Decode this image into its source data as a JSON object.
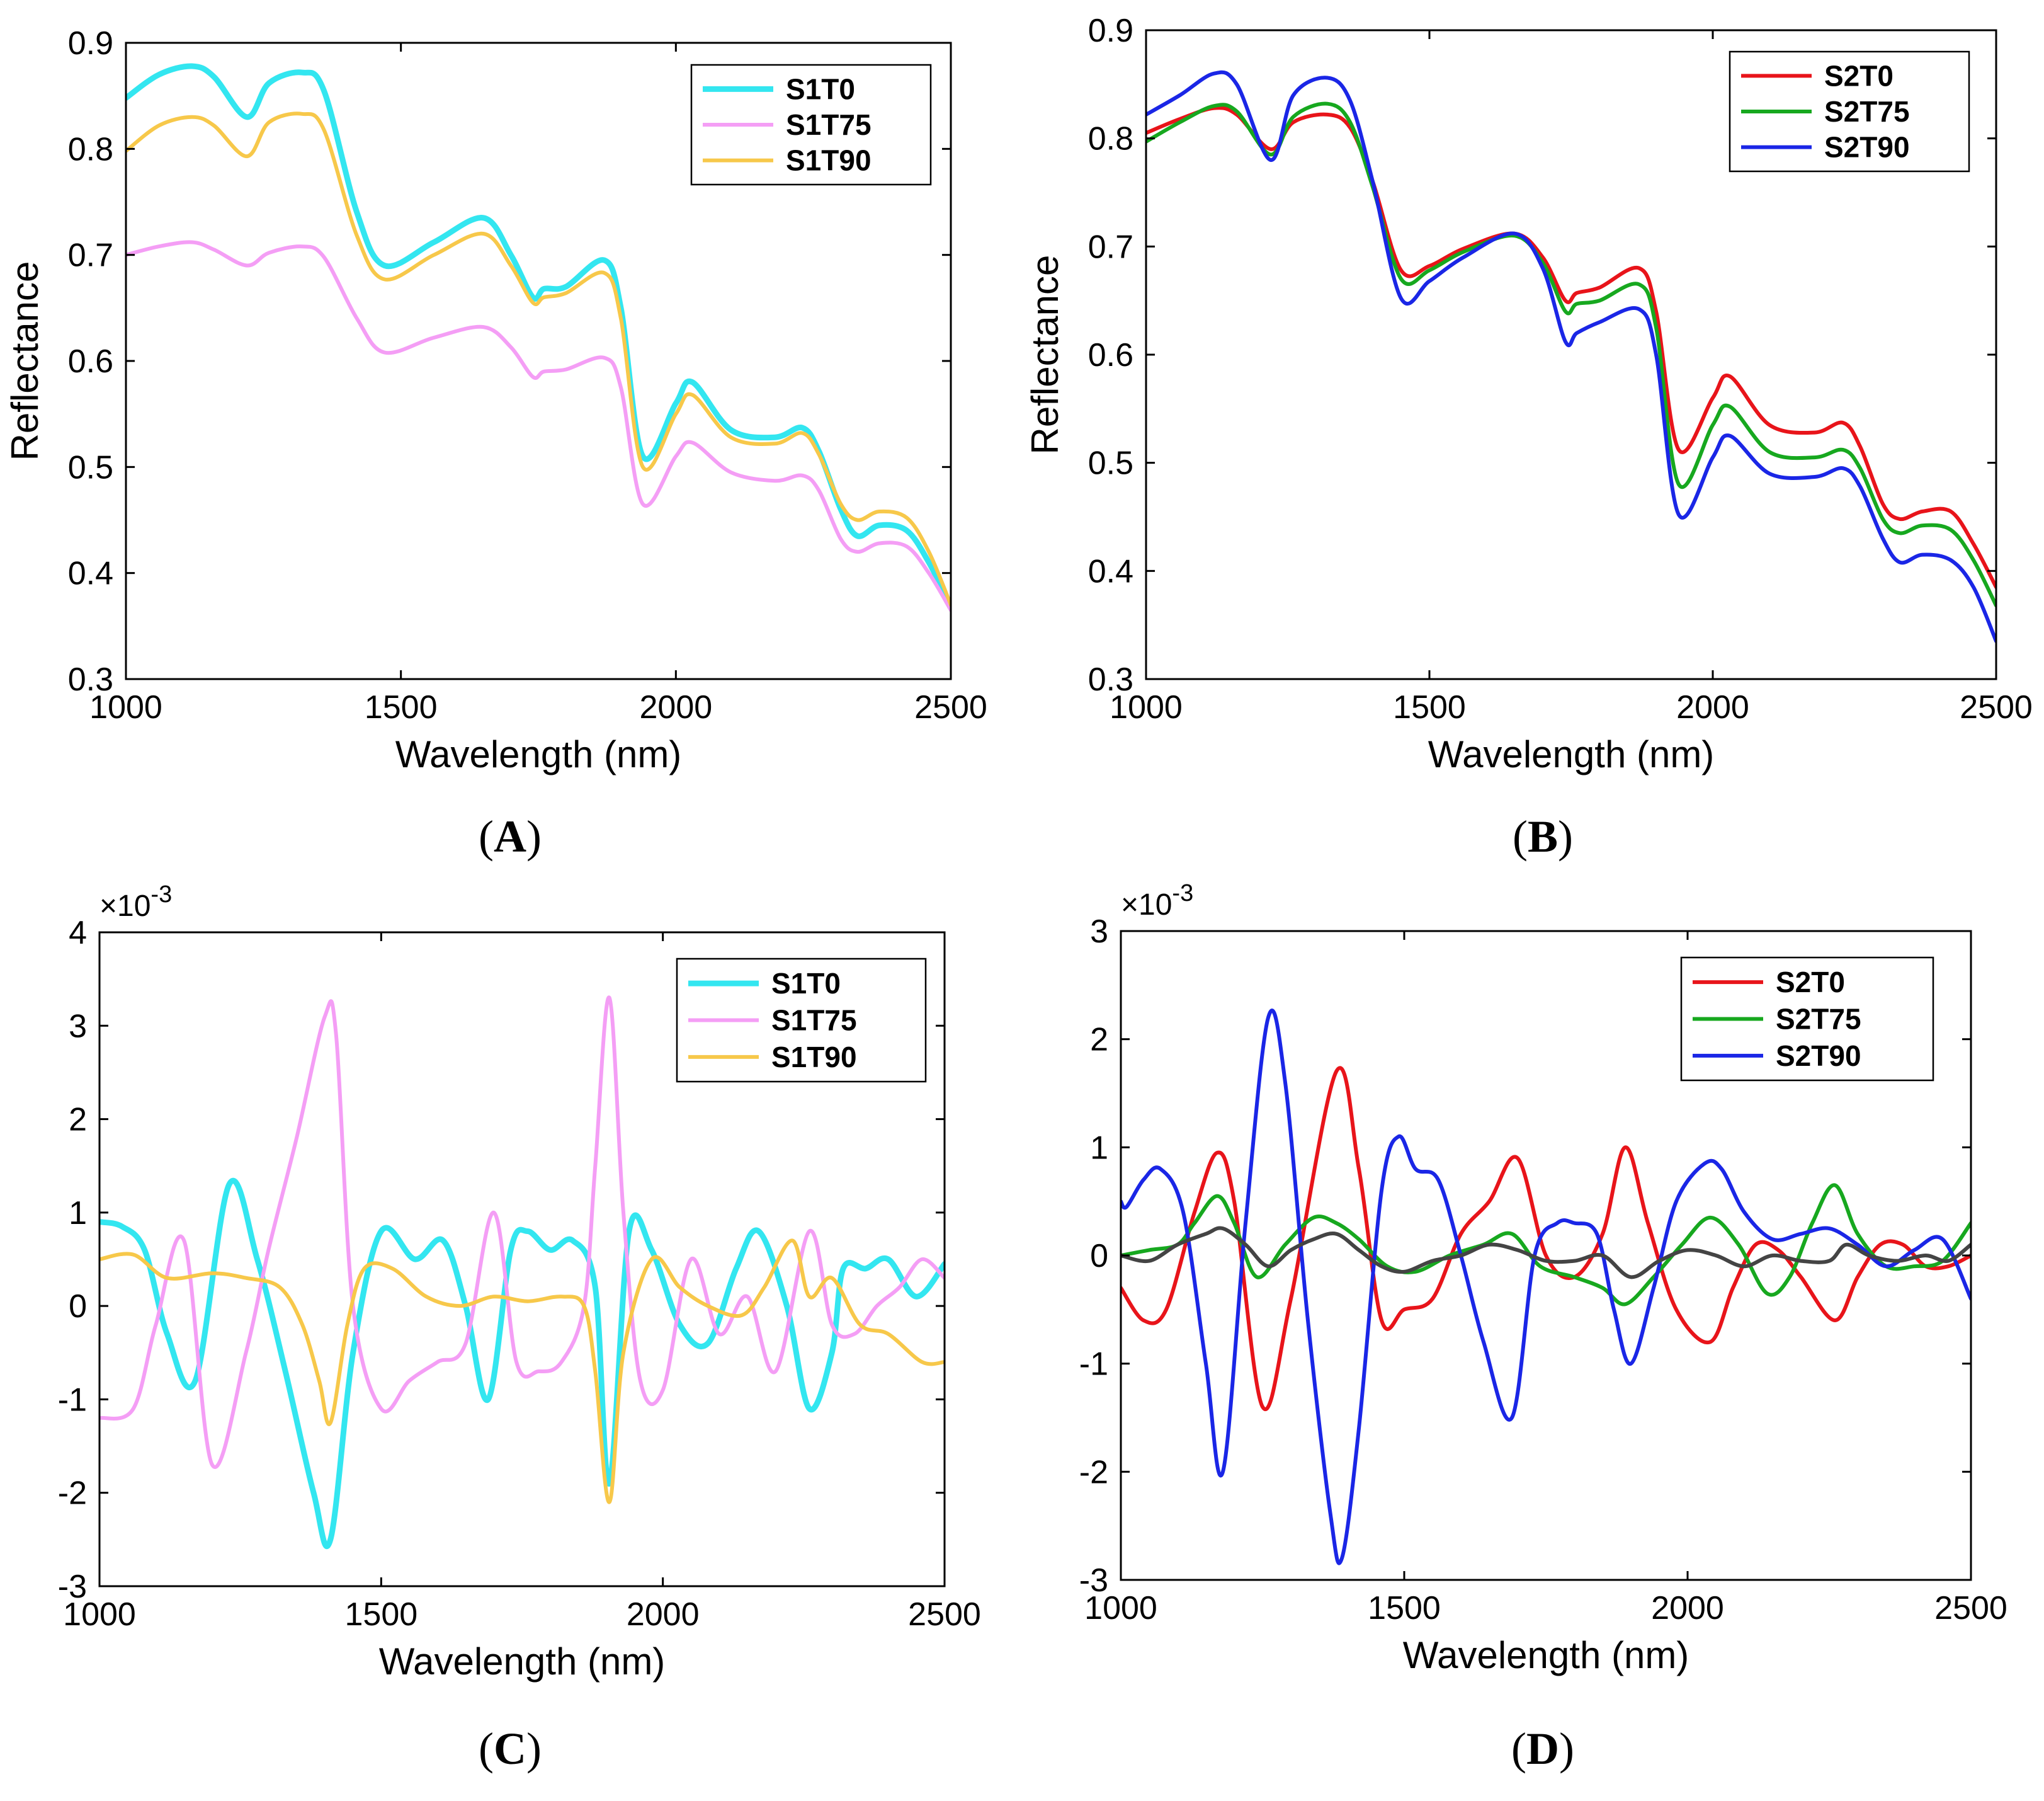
{
  "figure": {
    "background": "#ffffff"
  },
  "chart_data": [
    {
      "panel_label": "A",
      "type": "line",
      "xlabel": "Wavelength (nm)",
      "ylabel": "Reflectance",
      "xlim": [
        1000,
        2500
      ],
      "ylim": [
        0.3,
        0.9
      ],
      "xticks": [
        "1000",
        "1500",
        "2000",
        "2500"
      ],
      "yticks": [
        "0.3",
        "0.4",
        "0.5",
        "0.6",
        "0.7",
        "0.8",
        "0.9"
      ],
      "legend_position": "top-right",
      "series": [
        {
          "name": "S1T0",
          "color": "#33e6f0",
          "x": [
            1000,
            1060,
            1120,
            1160,
            1220,
            1260,
            1320,
            1360,
            1420,
            1470,
            1560,
            1650,
            1700,
            1740,
            1760,
            1800,
            1870,
            1900,
            1940,
            2000,
            2030,
            2100,
            2180,
            2230,
            2260,
            2300,
            2330,
            2370,
            2420,
            2460,
            2500
          ],
          "y": [
            0.848,
            0.87,
            0.878,
            0.868,
            0.83,
            0.862,
            0.872,
            0.855,
            0.74,
            0.69,
            0.712,
            0.735,
            0.7,
            0.66,
            0.668,
            0.67,
            0.695,
            0.65,
            0.51,
            0.56,
            0.58,
            0.535,
            0.528,
            0.537,
            0.515,
            0.46,
            0.435,
            0.445,
            0.44,
            0.41,
            0.368
          ]
        },
        {
          "name": "S1T75",
          "color": "#f49ef5",
          "x": [
            1000,
            1060,
            1120,
            1160,
            1220,
            1260,
            1320,
            1360,
            1420,
            1470,
            1560,
            1650,
            1700,
            1740,
            1760,
            1800,
            1870,
            1900,
            1940,
            2000,
            2030,
            2100,
            2180,
            2230,
            2260,
            2300,
            2330,
            2370,
            2420,
            2460,
            2500
          ],
          "y": [
            0.7,
            0.708,
            0.712,
            0.705,
            0.69,
            0.702,
            0.708,
            0.698,
            0.64,
            0.608,
            0.622,
            0.632,
            0.613,
            0.585,
            0.59,
            0.592,
            0.603,
            0.575,
            0.465,
            0.51,
            0.523,
            0.495,
            0.487,
            0.492,
            0.478,
            0.432,
            0.42,
            0.428,
            0.425,
            0.4,
            0.365
          ]
        },
        {
          "name": "S1T90",
          "color": "#f7c84a",
          "x": [
            1000,
            1060,
            1120,
            1160,
            1220,
            1260,
            1320,
            1360,
            1420,
            1470,
            1560,
            1650,
            1700,
            1740,
            1760,
            1800,
            1870,
            1900,
            1940,
            2000,
            2030,
            2100,
            2180,
            2230,
            2260,
            2300,
            2330,
            2370,
            2420,
            2460,
            2500
          ],
          "y": [
            0.798,
            0.822,
            0.83,
            0.822,
            0.793,
            0.825,
            0.833,
            0.818,
            0.718,
            0.677,
            0.7,
            0.72,
            0.69,
            0.655,
            0.66,
            0.664,
            0.683,
            0.64,
            0.5,
            0.55,
            0.568,
            0.528,
            0.522,
            0.532,
            0.512,
            0.465,
            0.45,
            0.458,
            0.452,
            0.42,
            0.37
          ]
        }
      ]
    },
    {
      "panel_label": "B",
      "type": "line",
      "xlabel": "Wavelength (nm)",
      "ylabel": "Reflectance",
      "xlim": [
        1000,
        2500
      ],
      "ylim": [
        0.3,
        0.9
      ],
      "xticks": [
        "1000",
        "1500",
        "2000",
        "2500"
      ],
      "yticks": [
        "0.3",
        "0.4",
        "0.5",
        "0.6",
        "0.7",
        "0.8",
        "0.9"
      ],
      "legend_position": "top-right",
      "series": [
        {
          "name": "S2T0",
          "color": "#e8141a",
          "x": [
            1000,
            1060,
            1120,
            1160,
            1220,
            1260,
            1320,
            1360,
            1400,
            1450,
            1500,
            1560,
            1650,
            1700,
            1740,
            1760,
            1800,
            1870,
            1900,
            1940,
            2000,
            2030,
            2100,
            2180,
            2230,
            2260,
            2300,
            2330,
            2370,
            2420,
            2460,
            2500
          ],
          "y": [
            0.805,
            0.818,
            0.828,
            0.822,
            0.79,
            0.815,
            0.822,
            0.81,
            0.76,
            0.678,
            0.682,
            0.698,
            0.712,
            0.69,
            0.65,
            0.657,
            0.662,
            0.68,
            0.64,
            0.512,
            0.56,
            0.58,
            0.535,
            0.528,
            0.537,
            0.515,
            0.462,
            0.448,
            0.455,
            0.455,
            0.425,
            0.385
          ]
        },
        {
          "name": "S2T75",
          "color": "#17a81f",
          "x": [
            1000,
            1060,
            1120,
            1160,
            1220,
            1260,
            1320,
            1360,
            1400,
            1450,
            1500,
            1560,
            1650,
            1700,
            1740,
            1760,
            1800,
            1870,
            1900,
            1940,
            2000,
            2030,
            2100,
            2180,
            2230,
            2260,
            2300,
            2330,
            2370,
            2420,
            2460,
            2500
          ],
          "y": [
            0.797,
            0.815,
            0.83,
            0.825,
            0.785,
            0.82,
            0.832,
            0.815,
            0.755,
            0.67,
            0.678,
            0.695,
            0.71,
            0.685,
            0.64,
            0.647,
            0.65,
            0.665,
            0.625,
            0.48,
            0.535,
            0.552,
            0.51,
            0.505,
            0.512,
            0.495,
            0.448,
            0.435,
            0.442,
            0.438,
            0.41,
            0.368
          ]
        },
        {
          "name": "S2T90",
          "color": "#1a26e6",
          "x": [
            1000,
            1060,
            1120,
            1160,
            1220,
            1260,
            1320,
            1360,
            1400,
            1450,
            1500,
            1560,
            1650,
            1700,
            1740,
            1760,
            1800,
            1870,
            1900,
            1940,
            2000,
            2030,
            2100,
            2180,
            2230,
            2260,
            2300,
            2330,
            2370,
            2420,
            2460,
            2500
          ],
          "y": [
            0.822,
            0.84,
            0.86,
            0.85,
            0.78,
            0.84,
            0.856,
            0.835,
            0.76,
            0.652,
            0.668,
            0.69,
            0.712,
            0.68,
            0.612,
            0.62,
            0.63,
            0.642,
            0.6,
            0.452,
            0.505,
            0.525,
            0.49,
            0.487,
            0.495,
            0.478,
            0.43,
            0.408,
            0.415,
            0.41,
            0.385,
            0.335
          ]
        }
      ]
    },
    {
      "panel_label": "C",
      "type": "line",
      "xlabel": "Wavelength (nm)",
      "ylabel": "",
      "exponent": "×10",
      "exponent_power": "-3",
      "xlim": [
        1000,
        2500
      ],
      "ylim": [
        -3,
        4
      ],
      "xticks": [
        "1000",
        "1500",
        "2000",
        "2500"
      ],
      "yticks": [
        "-3",
        "-2",
        "-1",
        "0",
        "1",
        "2",
        "3",
        "4"
      ],
      "legend_position": "top-right",
      "series": [
        {
          "name": "S1T0",
          "color": "#33e6f0",
          "x": [
            1000,
            1040,
            1080,
            1120,
            1170,
            1230,
            1280,
            1330,
            1380,
            1410,
            1450,
            1500,
            1560,
            1610,
            1650,
            1690,
            1730,
            1760,
            1800,
            1840,
            1880,
            1905,
            1940,
            1980,
            2030,
            2080,
            2130,
            2170,
            2220,
            2260,
            2300,
            2320,
            2360,
            2400,
            2450,
            2500
          ],
          "y": [
            0.9,
            0.85,
            0.6,
            -0.3,
            -0.8,
            1.3,
            0.5,
            -0.7,
            -2.0,
            -2.5,
            -0.5,
            0.8,
            0.5,
            0.7,
            0.0,
            -1.0,
            0.6,
            0.8,
            0.6,
            0.7,
            0.2,
            -1.9,
            0.8,
            0.6,
            -0.2,
            -0.4,
            0.4,
            0.8,
            0.0,
            -1.1,
            -0.5,
            0.4,
            0.4,
            0.5,
            0.1,
            0.45
          ]
        },
        {
          "name": "S1T75",
          "color": "#f49ef5",
          "x": [
            1000,
            1060,
            1100,
            1150,
            1200,
            1260,
            1300,
            1350,
            1400,
            1420,
            1450,
            1500,
            1550,
            1600,
            1650,
            1700,
            1740,
            1780,
            1820,
            1860,
            1880,
            1905,
            1930,
            1960,
            2000,
            2050,
            2100,
            2150,
            2200,
            2260,
            2300,
            2340,
            2380,
            2420,
            2460,
            2500
          ],
          "y": [
            -1.2,
            -1.1,
            -0.2,
            0.7,
            -1.7,
            -0.5,
            0.6,
            1.8,
            3.1,
            2.9,
            0.0,
            -1.1,
            -0.8,
            -0.6,
            -0.4,
            1.0,
            -0.6,
            -0.7,
            -0.6,
            0.0,
            1.5,
            3.3,
            1.0,
            -0.8,
            -0.9,
            0.5,
            -0.3,
            0.1,
            -0.7,
            0.8,
            -0.2,
            -0.3,
            0.0,
            0.2,
            0.5,
            0.3
          ]
        },
        {
          "name": "S1T90",
          "color": "#f7c84a",
          "x": [
            1000,
            1060,
            1120,
            1200,
            1260,
            1320,
            1360,
            1390,
            1410,
            1440,
            1470,
            1520,
            1580,
            1640,
            1700,
            1760,
            1820,
            1860,
            1880,
            1905,
            1930,
            1980,
            2030,
            2080,
            2140,
            2180,
            2230,
            2260,
            2300,
            2350,
            2400,
            2460,
            2500
          ],
          "y": [
            0.5,
            0.55,
            0.3,
            0.35,
            0.3,
            0.2,
            -0.2,
            -0.8,
            -1.25,
            -0.2,
            0.4,
            0.4,
            0.1,
            0.0,
            0.1,
            0.05,
            0.1,
            0.0,
            -0.7,
            -2.1,
            -0.5,
            0.5,
            0.2,
            0.0,
            -0.1,
            0.2,
            0.7,
            0.1,
            0.3,
            -0.2,
            -0.3,
            -0.6,
            -0.6
          ]
        }
      ]
    },
    {
      "panel_label": "D",
      "type": "line",
      "xlabel": "Wavelength (nm)",
      "ylabel": "",
      "exponent": "×10",
      "exponent_power": "-3",
      "xlim": [
        1000,
        2500
      ],
      "ylim": [
        -3,
        3
      ],
      "xticks": [
        "1000",
        "1500",
        "2000",
        "2500"
      ],
      "yticks": [
        "-3",
        "-2",
        "-1",
        "0",
        "1",
        "2",
        "3"
      ],
      "legend_position": "top-right",
      "series": [
        {
          "name": "S2T0",
          "color": "#e8141a",
          "x": [
            1000,
            1040,
            1080,
            1130,
            1170,
            1200,
            1250,
            1300,
            1380,
            1420,
            1460,
            1500,
            1550,
            1600,
            1650,
            1700,
            1750,
            1800,
            1850,
            1890,
            1930,
            1980,
            2040,
            2080,
            2120,
            2160,
            2200,
            2260,
            2300,
            2340,
            2380,
            2420,
            2460,
            2500
          ],
          "y": [
            -0.3,
            -0.6,
            -0.5,
            0.4,
            0.95,
            0.5,
            -1.4,
            -0.4,
            1.7,
            0.8,
            -0.6,
            -0.5,
            -0.4,
            0.2,
            0.5,
            0.9,
            0.0,
            -0.2,
            0.2,
            1.0,
            0.3,
            -0.5,
            -0.8,
            -0.3,
            0.1,
            0.05,
            -0.2,
            -0.6,
            -0.2,
            0.1,
            0.1,
            -0.1,
            -0.1,
            0.0
          ]
        },
        {
          "name": "S2T75",
          "color": "#17a81f",
          "x": [
            1000,
            1050,
            1100,
            1130,
            1170,
            1200,
            1240,
            1290,
            1340,
            1380,
            1420,
            1470,
            1520,
            1580,
            1640,
            1690,
            1740,
            1800,
            1850,
            1890,
            1940,
            1990,
            2040,
            2090,
            2140,
            2180,
            2220,
            2260,
            2300,
            2350,
            2400,
            2450,
            2500
          ],
          "y": [
            0.0,
            0.05,
            0.1,
            0.3,
            0.55,
            0.3,
            -0.2,
            0.1,
            0.35,
            0.3,
            0.15,
            -0.1,
            -0.15,
            0.0,
            0.1,
            0.2,
            -0.1,
            -0.2,
            -0.3,
            -0.45,
            -0.2,
            0.1,
            0.35,
            0.1,
            -0.35,
            -0.2,
            0.3,
            0.65,
            0.2,
            -0.1,
            -0.1,
            -0.05,
            0.3
          ]
        },
        {
          "name": "S2T90",
          "color": "#1a26e6",
          "x": [
            1000,
            1010,
            1040,
            1070,
            1110,
            1150,
            1180,
            1220,
            1260,
            1290,
            1330,
            1370,
            1390,
            1420,
            1460,
            1490,
            1520,
            1560,
            1600,
            1640,
            1690,
            1730,
            1770,
            1800,
            1840,
            1870,
            1900,
            1940,
            1980,
            2030,
            2060,
            2100,
            2150,
            2200,
            2250,
            2300,
            2350,
            2400,
            2450,
            2500
          ],
          "y": [
            0.5,
            0.45,
            0.7,
            0.8,
            0.4,
            -1.0,
            -2.0,
            0.3,
            2.2,
            1.6,
            -0.6,
            -2.4,
            -2.8,
            -1.6,
            0.6,
            1.1,
            0.8,
            0.7,
            0.0,
            -0.8,
            -1.5,
            0.0,
            0.3,
            0.3,
            0.2,
            -0.5,
            -1.0,
            -0.3,
            0.5,
            0.85,
            0.8,
            0.4,
            0.15,
            0.2,
            0.25,
            0.1,
            -0.1,
            0.05,
            0.15,
            -0.4
          ]
        },
        {
          "name": "",
          "color": "#444444",
          "x": [
            1000,
            1050,
            1100,
            1150,
            1180,
            1220,
            1260,
            1300,
            1340,
            1380,
            1420,
            1460,
            1500,
            1550,
            1600,
            1650,
            1700,
            1750,
            1800,
            1850,
            1900,
            1950,
            2000,
            2050,
            2100,
            2150,
            2200,
            2250,
            2280,
            2320,
            2370,
            2420,
            2460,
            2500
          ],
          "y": [
            0.0,
            -0.05,
            0.1,
            0.2,
            0.25,
            0.1,
            -0.1,
            0.05,
            0.15,
            0.2,
            0.05,
            -0.1,
            -0.15,
            -0.05,
            0.0,
            0.1,
            0.05,
            -0.05,
            -0.05,
            0.0,
            -0.2,
            -0.05,
            0.05,
            0.0,
            -0.1,
            0.0,
            -0.05,
            -0.05,
            0.1,
            0.0,
            -0.05,
            0.0,
            -0.05,
            0.1
          ]
        }
      ]
    }
  ]
}
